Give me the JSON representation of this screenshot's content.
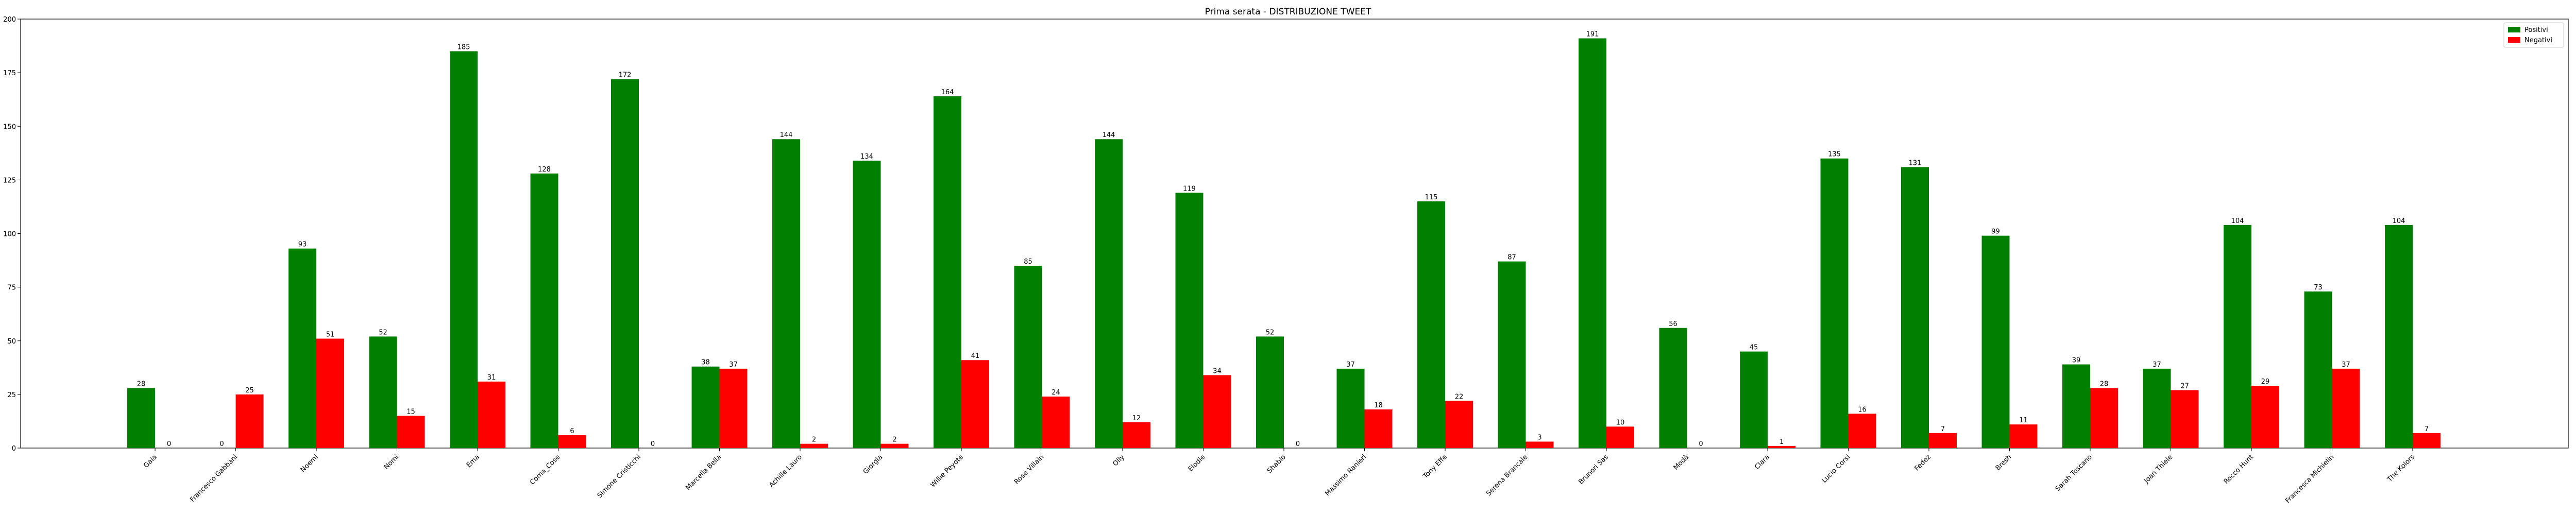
{
  "chart_data": {
    "type": "bar",
    "title": "Prima serata - DISTRIBUZIONE TWEET",
    "xlabel": "",
    "ylabel": "",
    "ylim": [
      0,
      200
    ],
    "yticks": [
      0,
      25,
      50,
      75,
      100,
      125,
      150,
      175,
      200
    ],
    "grid": false,
    "legend_position": "top-right",
    "categories": [
      "Gaia",
      "Francesco Gabbani",
      "Noemi",
      "Nomi",
      "Ema",
      "Coma_Cose",
      "Simone Cristicchi",
      "Marcella Bella",
      "Achille Lauro",
      "Giorgia",
      "Willie Peyote",
      "Rose Villain",
      "Olly",
      "Elodie",
      "Shablo",
      "Massimo Ranieri",
      "Tony Effe",
      "Serena Brancale",
      "Brunori Sas",
      "Modà",
      "Clara",
      "Lucio Corsi",
      "Fedez",
      "Bresh",
      "Sarah Toscano",
      "Joan Thiele",
      "Rocco Hunt",
      "Francesca Michielin",
      "The Kolors"
    ],
    "series": [
      {
        "name": "Positivi",
        "color": "#008000",
        "values": [
          28,
          0,
          93,
          52,
          185,
          128,
          172,
          38,
          144,
          134,
          164,
          85,
          144,
          119,
          52,
          37,
          115,
          87,
          191,
          56,
          45,
          135,
          131,
          99,
          39,
          37,
          104,
          73,
          104
        ]
      },
      {
        "name": "Negativi",
        "color": "#ff0000",
        "values": [
          0,
          25,
          51,
          15,
          31,
          6,
          0,
          37,
          2,
          2,
          41,
          24,
          12,
          34,
          0,
          18,
          22,
          3,
          10,
          0,
          1,
          16,
          7,
          11,
          28,
          27,
          29,
          37,
          7
        ]
      }
    ]
  }
}
